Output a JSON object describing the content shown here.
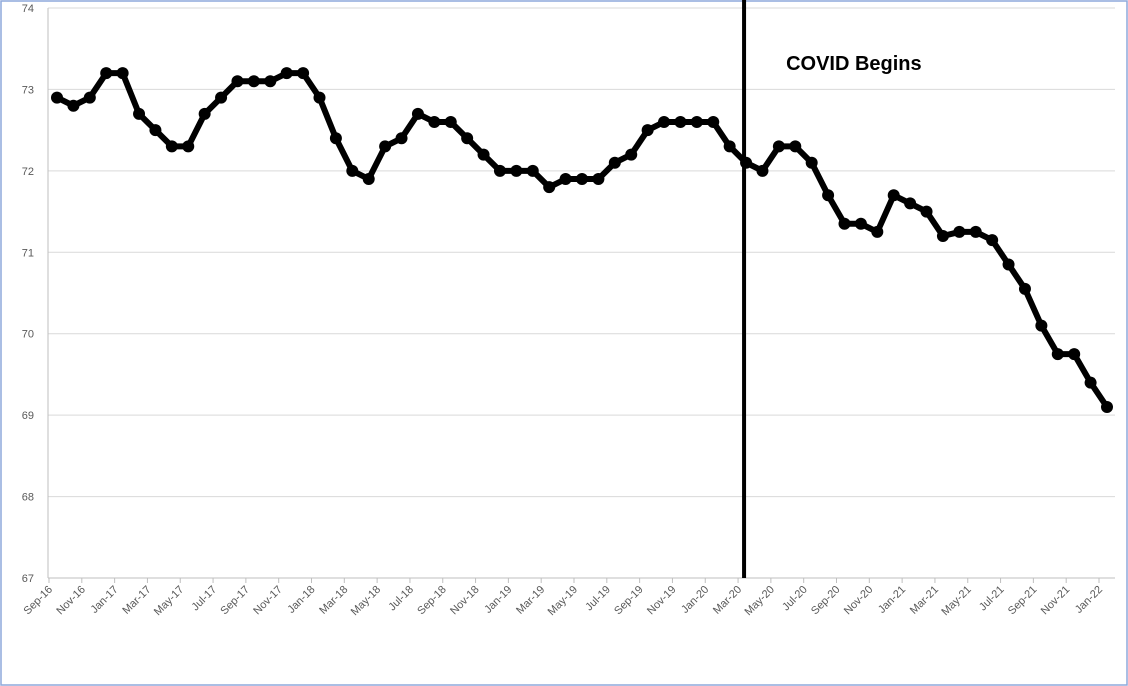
{
  "chart_data": {
    "type": "line",
    "categories": [
      "Sep-16",
      null,
      "Nov-16",
      null,
      "Jan-17",
      null,
      "Mar-17",
      null,
      "May-17",
      null,
      "Jul-17",
      null,
      "Sep-17",
      null,
      "Nov-17",
      null,
      "Jan-18",
      null,
      "Mar-18",
      null,
      "May-18",
      null,
      "Jul-18",
      null,
      "Sep-18",
      null,
      "Nov-18",
      null,
      "Jan-19",
      null,
      "Mar-19",
      null,
      "May-19",
      null,
      "Jul-19",
      null,
      "Sep-19",
      null,
      "Nov-19",
      null,
      "Jan-20",
      null,
      "Mar-20",
      null,
      "May-20",
      null,
      "Jul-20",
      null,
      "Sep-20",
      null,
      "Nov-20",
      null,
      "Jan-21",
      null,
      "Mar-21",
      null,
      "May-21",
      null,
      "Jul-21",
      null,
      "Sep-21",
      null,
      "Nov-21",
      null,
      "Jan-22"
    ],
    "series": [
      {
        "color": "#000000",
        "values": [
          72.9,
          72.8,
          72.9,
          73.2,
          73.2,
          72.7,
          72.5,
          72.3,
          72.3,
          72.7,
          72.9,
          73.1,
          73.1,
          73.1,
          73.2,
          73.2,
          72.9,
          72.4,
          72.0,
          71.9,
          72.3,
          72.4,
          72.7,
          72.6,
          72.6,
          72.4,
          72.2,
          72.0,
          72.0,
          72.0,
          71.8,
          71.9,
          71.9,
          71.9,
          72.1,
          72.2,
          72.5,
          72.6,
          72.6,
          72.6,
          72.6,
          72.3,
          72.1,
          72.0,
          72.3,
          72.3,
          72.1,
          71.7,
          71.35,
          71.35,
          71.25,
          71.7,
          71.6,
          71.5,
          71.2,
          71.25,
          71.25,
          71.15,
          70.85,
          70.55,
          70.1,
          69.75,
          69.75,
          69.4,
          69.1
        ]
      }
    ],
    "ylim": [
      67,
      74
    ],
    "yticks": [
      67,
      68,
      69,
      70,
      71,
      72,
      73,
      74
    ],
    "grid": true,
    "annotation": {
      "text": "COVID Begins",
      "x": "Mar-20",
      "color": "#000000"
    }
  }
}
